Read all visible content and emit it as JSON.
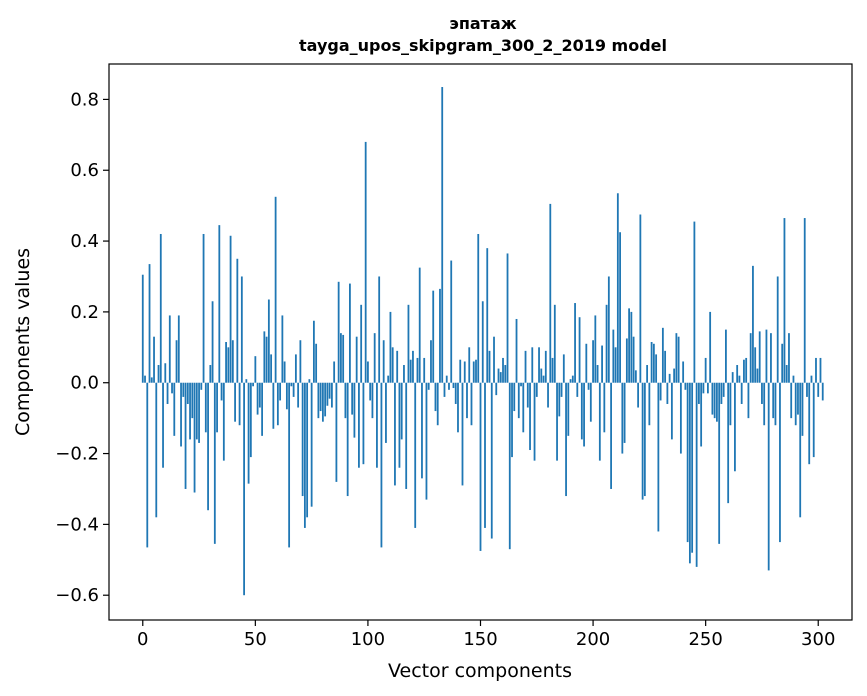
{
  "chart_data": {
    "type": "bar",
    "title_line1": "эпатаж",
    "title_line2": "tayga_upos_skipgram_300_2_2019 model",
    "xlabel": "Vector components",
    "ylabel": "Components values",
    "xlim": [
      -15,
      315
    ],
    "ylim": [
      -0.67,
      0.9
    ],
    "x_ticks": [
      0,
      50,
      100,
      150,
      200,
      250,
      300
    ],
    "x_tick_labels": [
      "0",
      "50",
      "100",
      "150",
      "200",
      "250",
      "300"
    ],
    "y_ticks": [
      -0.6,
      -0.4,
      -0.2,
      0.0,
      0.2,
      0.4,
      0.6,
      0.8
    ],
    "y_tick_labels": [
      "−0.6",
      "−0.4",
      "−0.2",
      "0.0",
      "0.2",
      "0.4",
      "0.6",
      "0.8"
    ],
    "bar_color": "#1f77b4",
    "series": [
      {
        "name": "components",
        "values": [
          0.305,
          0.02,
          -0.465,
          0.335,
          0.015,
          0.13,
          -0.38,
          0.05,
          0.42,
          -0.24,
          0.055,
          -0.06,
          0.19,
          -0.03,
          -0.15,
          0.12,
          0.19,
          -0.18,
          -0.04,
          -0.3,
          -0.06,
          -0.16,
          -0.1,
          -0.31,
          -0.16,
          -0.17,
          -0.02,
          0.42,
          -0.14,
          -0.36,
          0.05,
          0.23,
          -0.455,
          -0.14,
          0.445,
          -0.05,
          -0.22,
          0.115,
          0.1,
          0.415,
          0.12,
          -0.11,
          0.35,
          -0.12,
          0.3,
          -0.6,
          0.01,
          -0.285,
          -0.21,
          -0.01,
          0.075,
          -0.09,
          -0.07,
          -0.15,
          0.145,
          0.13,
          0.235,
          0.08,
          -0.13,
          0.525,
          -0.12,
          -0.05,
          0.19,
          0.06,
          -0.075,
          -0.465,
          -0.01,
          -0.04,
          0.08,
          -0.07,
          0.12,
          -0.32,
          -0.41,
          -0.38,
          0.01,
          -0.35,
          0.175,
          0.11,
          -0.1,
          -0.08,
          -0.11,
          -0.095,
          -0.065,
          -0.045,
          -0.07,
          0.06,
          -0.28,
          0.285,
          0.14,
          0.135,
          -0.1,
          -0.32,
          0.28,
          -0.09,
          -0.155,
          0.13,
          -0.24,
          0.22,
          -0.23,
          0.68,
          0.06,
          -0.05,
          -0.1,
          0.14,
          -0.24,
          0.3,
          -0.465,
          0.12,
          -0.17,
          0.02,
          0.2,
          0.1,
          -0.29,
          0.09,
          -0.24,
          -0.16,
          0.05,
          -0.3,
          0.22,
          0.065,
          0.09,
          -0.41,
          0.07,
          0.325,
          -0.27,
          0.07,
          -0.33,
          -0.02,
          0.12,
          0.26,
          -0.08,
          -0.12,
          0.265,
          0.835,
          -0.04,
          0.02,
          -0.02,
          0.345,
          -0.015,
          -0.06,
          -0.14,
          0.065,
          -0.29,
          0.06,
          -0.1,
          0.1,
          -0.12,
          0.06,
          0.065,
          0.42,
          -0.475,
          0.23,
          -0.41,
          0.38,
          0.09,
          -0.44,
          0.13,
          -0.035,
          0.04,
          0.03,
          0.07,
          0.05,
          0.365,
          -0.47,
          -0.21,
          -0.08,
          0.18,
          -0.1,
          -0.01,
          -0.14,
          0.09,
          -0.07,
          -0.19,
          0.1,
          -0.22,
          -0.04,
          0.1,
          0.04,
          0.02,
          0.09,
          -0.07,
          0.505,
          0.07,
          0.22,
          -0.22,
          -0.095,
          -0.04,
          0.08,
          -0.32,
          -0.15,
          0.01,
          0.02,
          0.225,
          -0.04,
          0.185,
          -0.16,
          -0.18,
          0.11,
          -0.02,
          -0.11,
          0.12,
          0.19,
          0.05,
          -0.22,
          0.105,
          -0.14,
          0.22,
          0.3,
          -0.3,
          0.15,
          0.1,
          0.535,
          0.425,
          -0.2,
          -0.17,
          0.125,
          0.21,
          0.2,
          0.13,
          0.035,
          -0.07,
          0.475,
          -0.33,
          -0.32,
          0.05,
          -0.12,
          0.115,
          0.11,
          0.08,
          -0.42,
          -0.05,
          0.155,
          0.09,
          -0.06,
          0.025,
          -0.16,
          0.04,
          0.14,
          0.13,
          -0.2,
          0.06,
          -0.02,
          -0.45,
          -0.51,
          -0.48,
          0.455,
          -0.52,
          -0.06,
          -0.18,
          -0.03,
          0.07,
          -0.03,
          0.2,
          -0.09,
          -0.1,
          -0.11,
          -0.455,
          -0.06,
          -0.04,
          0.15,
          -0.34,
          -0.12,
          0.03,
          -0.25,
          0.05,
          0.02,
          -0.06,
          0.065,
          0.07,
          -0.1,
          0.14,
          0.33,
          0.1,
          0.04,
          0.145,
          -0.06,
          -0.12,
          0.15,
          -0.53,
          0.14,
          -0.1,
          -0.12,
          0.3,
          -0.45,
          0.11,
          0.465,
          0.05,
          0.14,
          -0.1,
          0.02,
          -0.12,
          -0.09,
          -0.38,
          -0.15,
          0.465,
          -0.04,
          -0.23,
          0.02,
          -0.21,
          0.07,
          -0.04,
          0.07,
          -0.05
        ]
      }
    ]
  }
}
